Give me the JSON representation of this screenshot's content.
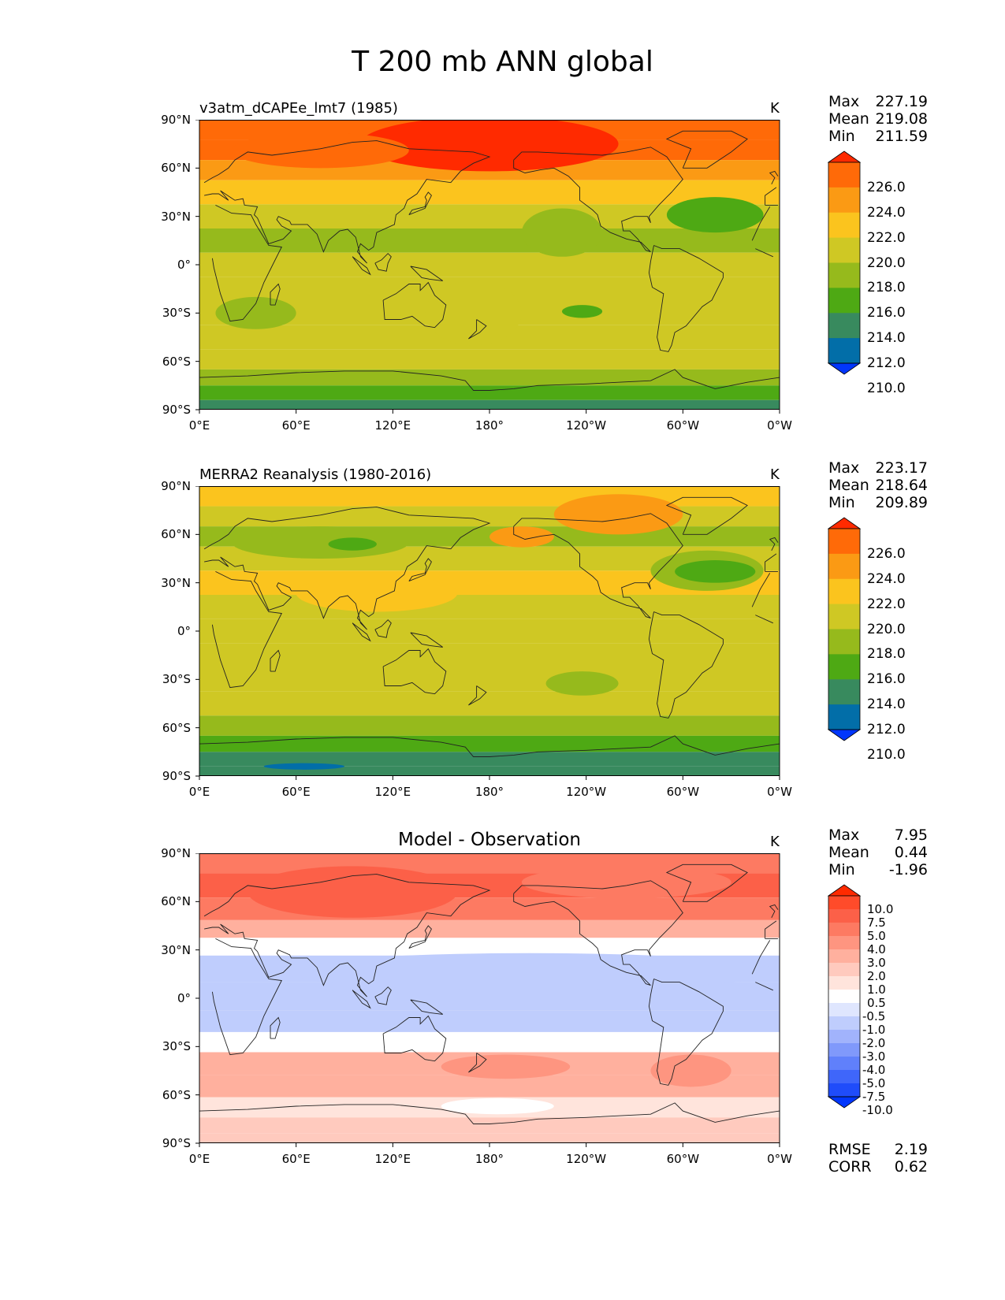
{
  "figure": {
    "title": "T 200 mb ANN global",
    "lat_ticks": [
      "90°N",
      "60°N",
      "30°N",
      "0°",
      "30°S",
      "60°S",
      "90°S"
    ],
    "lon_ticks": [
      "0°E",
      "60°E",
      "120°E",
      "180°",
      "120°W",
      "60°W",
      "0°W"
    ]
  },
  "panels": [
    {
      "title": "v3atm_dCAPEe_lmt7 (1985)",
      "units": "K",
      "stats": [
        {
          "label": "Max",
          "value": "227.19"
        },
        {
          "label": "Mean",
          "value": "219.08"
        },
        {
          "label": "Min",
          "value": "211.59"
        }
      ],
      "colorbar": {
        "labels": [
          "226.0",
          "224.0",
          "222.0",
          "220.0",
          "218.0",
          "216.0",
          "214.0",
          "212.0",
          "210.0"
        ],
        "colors": [
          "#ff2a00",
          "#ff6a08",
          "#fb9a14",
          "#fbc41e",
          "#cfc824",
          "#96ba1c",
          "#4ea914",
          "#388a5e",
          "#026ea8",
          "#0136fc"
        ]
      }
    },
    {
      "title": "MERRA2 Reanalysis (1980-2016)",
      "units": "K",
      "stats": [
        {
          "label": "Max",
          "value": "223.17"
        },
        {
          "label": "Mean",
          "value": "218.64"
        },
        {
          "label": "Min",
          "value": "209.89"
        }
      ],
      "colorbar": {
        "labels": [
          "226.0",
          "224.0",
          "222.0",
          "220.0",
          "218.0",
          "216.0",
          "214.0",
          "212.0",
          "210.0"
        ],
        "colors": [
          "#ff2a00",
          "#ff6a08",
          "#fb9a14",
          "#fbc41e",
          "#cfc824",
          "#96ba1c",
          "#4ea914",
          "#388a5e",
          "#026ea8",
          "#0136fc"
        ]
      }
    },
    {
      "title": "Model - Observation",
      "units": "K",
      "stats": [
        {
          "label": "Max",
          "value": "7.95"
        },
        {
          "label": "Mean",
          "value": "0.44"
        },
        {
          "label": "Min",
          "value": "-1.96"
        }
      ],
      "colorbar": {
        "labels": [
          "10.0",
          "7.5",
          "5.0",
          "4.0",
          "3.0",
          "2.0",
          "1.0",
          "0.5",
          "-0.5",
          "-1.0",
          "-2.0",
          "-3.0",
          "-4.0",
          "-5.0",
          "-7.5",
          "-10.0"
        ],
        "colors": [
          "#ff2a00",
          "#ff4b2a",
          "#fc6048",
          "#fd7a62",
          "#fe9580",
          "#ffb09e",
          "#ffcabe",
          "#ffe4dc",
          "#ffffff",
          "#dfe6fe",
          "#bfcdfd",
          "#a1b3fc",
          "#8099fb",
          "#6080fb",
          "#3f66fa",
          "#1f4cfa",
          "#0136fc"
        ]
      },
      "metrics": [
        {
          "label": "RMSE",
          "value": "2.19"
        },
        {
          "label": "CORR",
          "value": "0.62"
        }
      ]
    }
  ],
  "chart_data": {
    "type": "heatmap",
    "title": "T 200 mb ANN global",
    "variable": "T 200 mb",
    "season": "ANN",
    "region": "global",
    "units": "K",
    "x_axis": {
      "label": "",
      "range": [
        0,
        360
      ],
      "ticks": [
        "0°E",
        "60°E",
        "120°E",
        "180°",
        "120°W",
        "60°W",
        "0°W"
      ]
    },
    "y_axis": {
      "label": "",
      "range": [
        -90,
        90
      ],
      "ticks": [
        "90°N",
        "60°N",
        "30°N",
        "0°",
        "30°S",
        "60°S",
        "90°S"
      ]
    },
    "maps": [
      {
        "name": "v3atm_dCAPEe_lmt7 (1985)",
        "levels": [
          210,
          212,
          214,
          216,
          218,
          220,
          222,
          224,
          226
        ],
        "max": 227.19,
        "mean": 219.08,
        "min": 211.59,
        "zonal_profile_approx": [
          {
            "lat": 85,
            "value": 225.5
          },
          {
            "lat": 70,
            "value": 224.5
          },
          {
            "lat": 60,
            "value": 222.5
          },
          {
            "lat": 45,
            "value": 220.5
          },
          {
            "lat": 30,
            "value": 218.5
          },
          {
            "lat": 15,
            "value": 217.5
          },
          {
            "lat": 0,
            "value": 218.5
          },
          {
            "lat": -15,
            "value": 218.5
          },
          {
            "lat": -30,
            "value": 218.5
          },
          {
            "lat": -45,
            "value": 218.5
          },
          {
            "lat": -60,
            "value": 218.5
          },
          {
            "lat": -70,
            "value": 216.5
          },
          {
            "lat": -80,
            "value": 214.5
          },
          {
            "lat": -88,
            "value": 213.0
          }
        ]
      },
      {
        "name": "MERRA2 Reanalysis (1980-2016)",
        "levels": [
          210,
          212,
          214,
          216,
          218,
          220,
          222,
          224,
          226
        ],
        "max": 223.17,
        "mean": 218.64,
        "min": 209.89,
        "zonal_profile_approx": [
          {
            "lat": 85,
            "value": 220.5
          },
          {
            "lat": 70,
            "value": 218.5
          },
          {
            "lat": 60,
            "value": 217.5
          },
          {
            "lat": 45,
            "value": 218.5
          },
          {
            "lat": 30,
            "value": 220.5
          },
          {
            "lat": 15,
            "value": 219.5
          },
          {
            "lat": 0,
            "value": 218.5
          },
          {
            "lat": -15,
            "value": 219.0
          },
          {
            "lat": -30,
            "value": 218.5
          },
          {
            "lat": -45,
            "value": 218.5
          },
          {
            "lat": -60,
            "value": 217.5
          },
          {
            "lat": -70,
            "value": 215.0
          },
          {
            "lat": -80,
            "value": 213.0
          },
          {
            "lat": -88,
            "value": 212.5
          }
        ]
      },
      {
        "name": "Model - Observation",
        "levels": [
          -10,
          -7.5,
          -5,
          -4,
          -3,
          -2,
          -1,
          -0.5,
          0.5,
          1,
          2,
          3,
          4,
          5,
          7.5,
          10
        ],
        "max": 7.95,
        "mean": 0.44,
        "min": -1.96,
        "rmse": 2.19,
        "corr": 0.62,
        "zonal_profile_approx": [
          {
            "lat": 85,
            "value": 4.5
          },
          {
            "lat": 70,
            "value": 5.5
          },
          {
            "lat": 55,
            "value": 4.5
          },
          {
            "lat": 42,
            "value": 2.5
          },
          {
            "lat": 33,
            "value": 0.0
          },
          {
            "lat": 20,
            "value": -1.5
          },
          {
            "lat": 0,
            "value": -1.5
          },
          {
            "lat": -15,
            "value": -1.5
          },
          {
            "lat": -27,
            "value": 0.0
          },
          {
            "lat": -40,
            "value": 2.5
          },
          {
            "lat": -55,
            "value": 2.5
          },
          {
            "lat": -68,
            "value": 0.75
          },
          {
            "lat": -80,
            "value": 1.5
          },
          {
            "lat": -88,
            "value": 1.5
          }
        ]
      }
    ]
  }
}
